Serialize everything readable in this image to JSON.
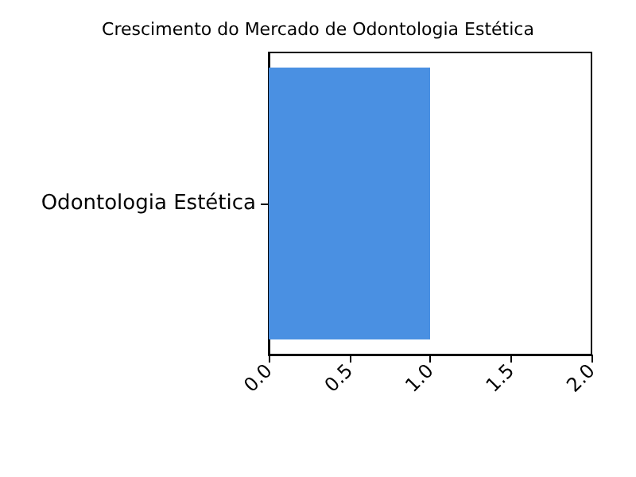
{
  "chart_data": {
    "type": "bar",
    "orientation": "horizontal",
    "title": "Crescimento do Mercado de Odontologia Estética",
    "categories": [
      "Odontologia Estética"
    ],
    "values": [
      1.0
    ],
    "color": "#4a90e2",
    "xlim": [
      0,
      2
    ],
    "xticks": [
      {
        "value": 0,
        "label": "0.0"
      },
      {
        "value": 0.5,
        "label": "0.5"
      },
      {
        "value": 1,
        "label": "1.0"
      },
      {
        "value": 1.5,
        "label": "1.5"
      },
      {
        "value": 2,
        "label": "2.0"
      }
    ],
    "grid": false
  }
}
